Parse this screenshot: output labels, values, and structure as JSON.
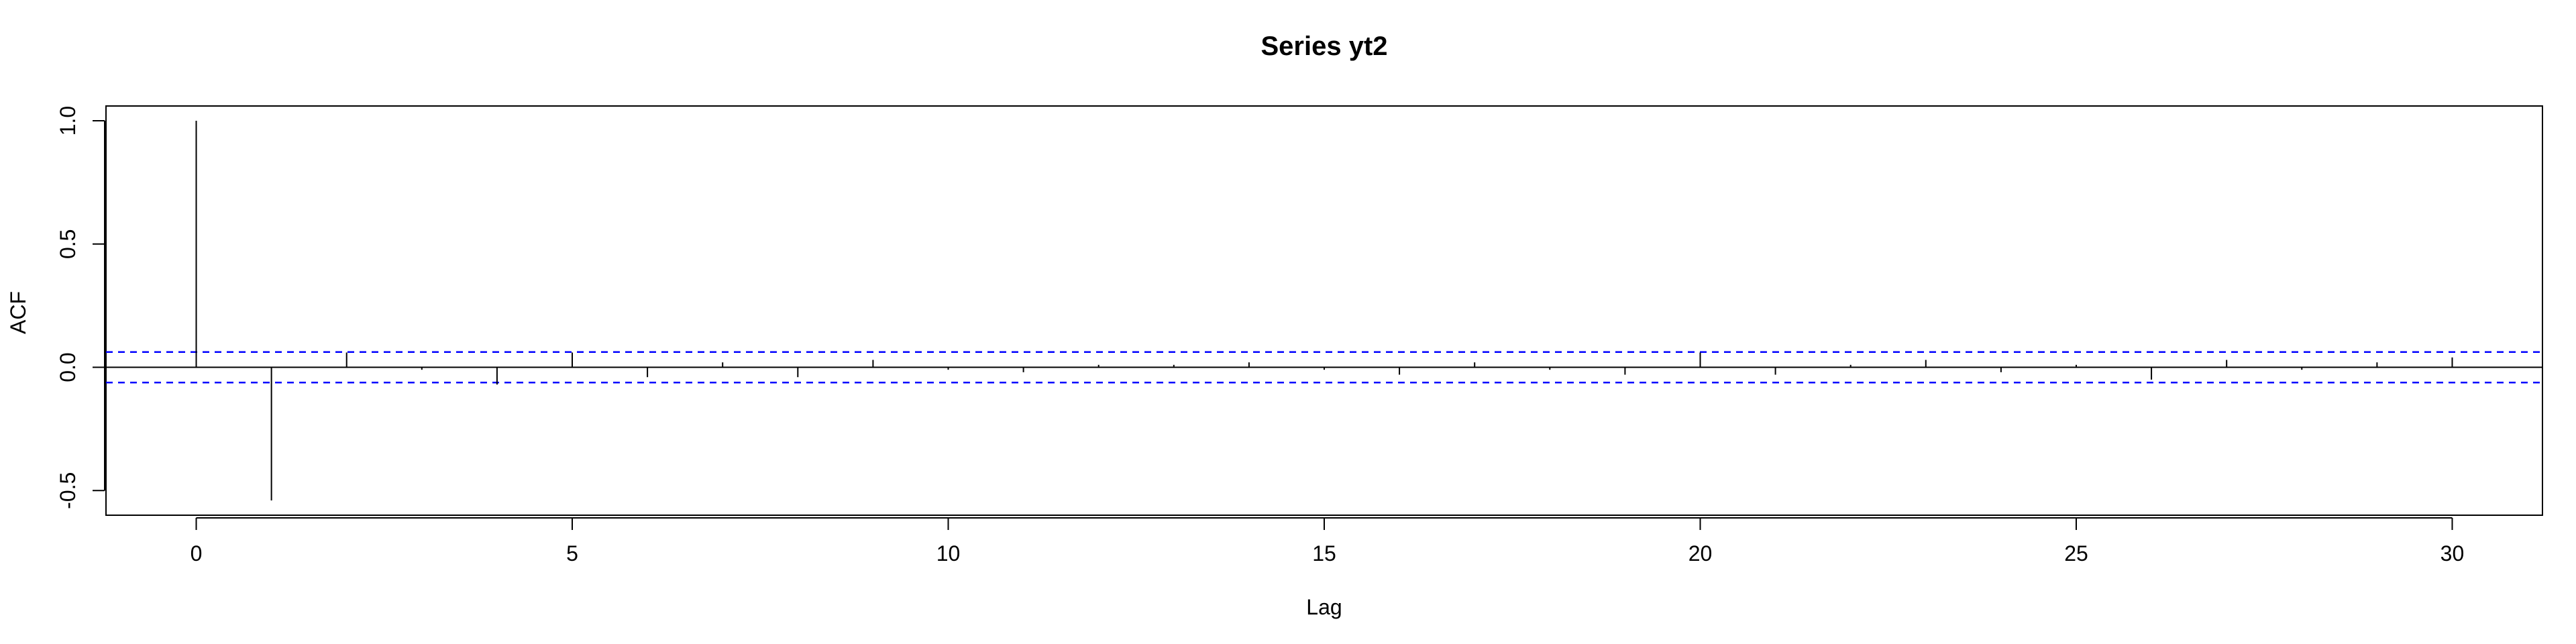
{
  "chart_data": {
    "type": "bar",
    "title": "Series  yt2",
    "xlabel": "Lag",
    "ylabel": "ACF",
    "xlim": [
      -1.2,
      31.2
    ],
    "ylim": [
      -0.6,
      1.06
    ],
    "x_ticks": [
      0,
      5,
      10,
      15,
      20,
      25,
      30
    ],
    "y_ticks": [
      -0.5,
      0.0,
      0.5,
      1.0
    ],
    "x_tick_labels": [
      "0",
      "5",
      "10",
      "15",
      "20",
      "25",
      "30"
    ],
    "y_tick_labels": [
      "-0.5",
      "0.0",
      "0.5",
      "1.0"
    ],
    "lags": [
      0,
      1,
      2,
      3,
      4,
      5,
      6,
      7,
      8,
      9,
      10,
      11,
      12,
      13,
      14,
      15,
      16,
      17,
      18,
      19,
      20,
      21,
      22,
      23,
      24,
      25,
      26,
      27,
      28,
      29,
      30
    ],
    "values": [
      1.0,
      -0.54,
      0.06,
      -0.01,
      -0.07,
      0.06,
      -0.04,
      0.02,
      -0.04,
      0.03,
      -0.01,
      -0.02,
      0.01,
      0.01,
      0.02,
      -0.01,
      -0.03,
      0.02,
      -0.01,
      -0.03,
      0.06,
      -0.03,
      0.01,
      0.03,
      -0.02,
      0.01,
      -0.05,
      0.03,
      -0.01,
      0.02,
      0.04
    ],
    "confidence_bound": 0.062,
    "grid": false,
    "colors": {
      "spike": "#000000",
      "zero_line": "#000000",
      "confidence": "#0000ff",
      "axis": "#000000"
    }
  }
}
